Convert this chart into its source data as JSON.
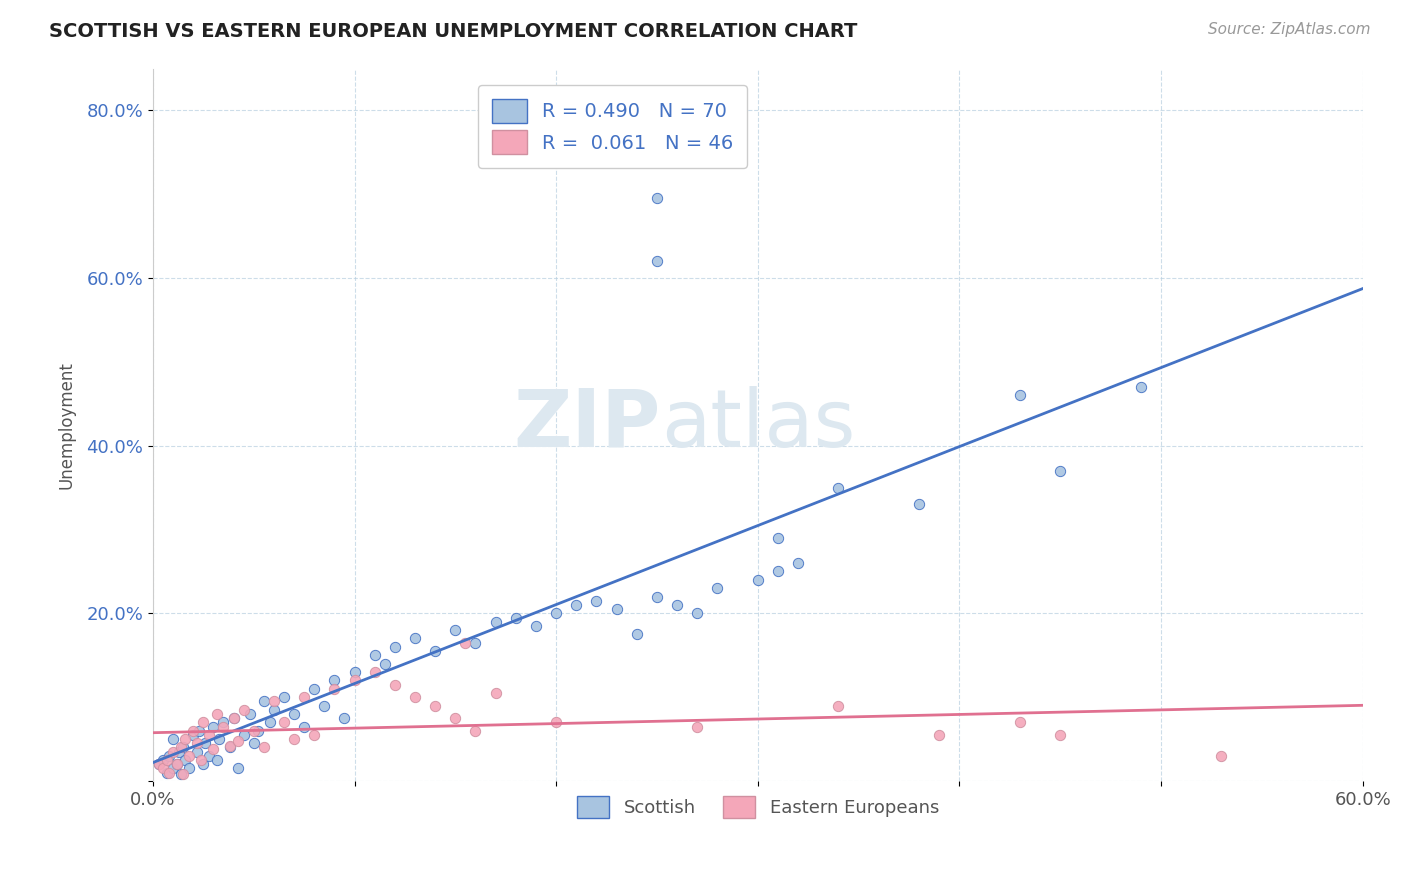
{
  "title": "SCOTTISH VS EASTERN EUROPEAN UNEMPLOYMENT CORRELATION CHART",
  "source": "Source: ZipAtlas.com",
  "ylabel": "Unemployment",
  "xlim": [
    0.0,
    0.6
  ],
  "ylim": [
    0.0,
    0.85
  ],
  "yticks": [
    0.0,
    0.2,
    0.4,
    0.6,
    0.8
  ],
  "xticks": [
    0.0,
    0.1,
    0.2,
    0.3,
    0.4,
    0.5,
    0.6
  ],
  "xtick_labels": [
    "0.0%",
    "",
    "",
    "",
    "",
    "",
    "60.0%"
  ],
  "ytick_labels": [
    "",
    "20.0%",
    "40.0%",
    "60.0%",
    "80.0%"
  ],
  "legend_R_scottish": "0.490",
  "legend_N_scottish": "70",
  "legend_R_eastern": "0.061",
  "legend_N_eastern": "46",
  "scottish_color": "#a8c4e0",
  "eastern_color": "#f4a7b9",
  "scottish_line_color": "#4472c4",
  "eastern_line_color": "#e07090",
  "background_color": "#ffffff",
  "scottish_points_x": [
    0.003,
    0.005,
    0.007,
    0.008,
    0.01,
    0.01,
    0.012,
    0.013,
    0.014,
    0.015,
    0.016,
    0.018,
    0.02,
    0.022,
    0.023,
    0.025,
    0.026,
    0.028,
    0.03,
    0.032,
    0.033,
    0.035,
    0.038,
    0.04,
    0.042,
    0.045,
    0.048,
    0.05,
    0.052,
    0.055,
    0.058,
    0.06,
    0.065,
    0.07,
    0.075,
    0.08,
    0.085,
    0.09,
    0.095,
    0.1,
    0.11,
    0.115,
    0.12,
    0.13,
    0.14,
    0.15,
    0.16,
    0.17,
    0.18,
    0.19,
    0.2,
    0.21,
    0.22,
    0.23,
    0.24,
    0.25,
    0.26,
    0.27,
    0.28,
    0.3,
    0.31,
    0.32,
    0.34,
    0.38,
    0.43,
    0.45,
    0.49,
    0.25,
    0.25,
    0.31
  ],
  "scottish_points_y": [
    0.02,
    0.025,
    0.01,
    0.03,
    0.015,
    0.05,
    0.02,
    0.035,
    0.008,
    0.04,
    0.025,
    0.015,
    0.055,
    0.035,
    0.06,
    0.02,
    0.045,
    0.03,
    0.065,
    0.025,
    0.05,
    0.07,
    0.04,
    0.075,
    0.015,
    0.055,
    0.08,
    0.045,
    0.06,
    0.095,
    0.07,
    0.085,
    0.1,
    0.08,
    0.065,
    0.11,
    0.09,
    0.12,
    0.075,
    0.13,
    0.15,
    0.14,
    0.16,
    0.17,
    0.155,
    0.18,
    0.165,
    0.19,
    0.195,
    0.185,
    0.2,
    0.21,
    0.215,
    0.205,
    0.175,
    0.22,
    0.21,
    0.2,
    0.23,
    0.24,
    0.25,
    0.26,
    0.35,
    0.33,
    0.46,
    0.37,
    0.47,
    0.62,
    0.695,
    0.29
  ],
  "eastern_points_x": [
    0.003,
    0.005,
    0.007,
    0.008,
    0.01,
    0.012,
    0.014,
    0.015,
    0.016,
    0.018,
    0.02,
    0.022,
    0.024,
    0.025,
    0.028,
    0.03,
    0.032,
    0.035,
    0.038,
    0.04,
    0.042,
    0.045,
    0.05,
    0.055,
    0.06,
    0.065,
    0.07,
    0.075,
    0.08,
    0.09,
    0.1,
    0.11,
    0.12,
    0.13,
    0.14,
    0.15,
    0.155,
    0.16,
    0.17,
    0.2,
    0.27,
    0.34,
    0.39,
    0.43,
    0.45,
    0.53
  ],
  "eastern_points_y": [
    0.02,
    0.015,
    0.025,
    0.01,
    0.035,
    0.02,
    0.04,
    0.008,
    0.05,
    0.03,
    0.06,
    0.045,
    0.025,
    0.07,
    0.055,
    0.038,
    0.08,
    0.065,
    0.042,
    0.075,
    0.048,
    0.085,
    0.06,
    0.04,
    0.095,
    0.07,
    0.05,
    0.1,
    0.055,
    0.11,
    0.12,
    0.13,
    0.115,
    0.1,
    0.09,
    0.075,
    0.165,
    0.06,
    0.105,
    0.07,
    0.065,
    0.09,
    0.055,
    0.07,
    0.055,
    0.03
  ]
}
